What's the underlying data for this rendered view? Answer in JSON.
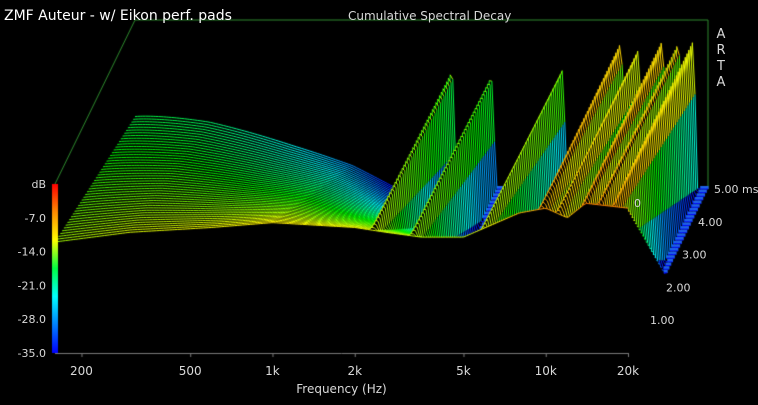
{
  "overlay_title": "ZMF Auteur - w/ Eikon perf. pads",
  "brand_letters": [
    "A",
    "R",
    "T",
    "A"
  ],
  "chart_data": {
    "type": "waterfall",
    "title": "Cumulative Spectral Decay",
    "xlabel": "Frequency (Hz)",
    "x_scale": "log",
    "xlim": [
      160,
      20000
    ],
    "x_ticks": [
      200,
      500,
      1000,
      2000,
      5000,
      10000,
      20000
    ],
    "x_tick_labels": [
      "200",
      "500",
      "1k",
      "2k",
      "5k",
      "10k",
      "20k"
    ],
    "zlabel": "dB",
    "zlim": [
      -35,
      0
    ],
    "z_ticks": [
      -7,
      -14,
      -21,
      -28,
      -35
    ],
    "z_tick_labels": [
      "-7.0",
      "-14.0",
      "-21.0",
      "-28.0",
      "-35.0"
    ],
    "time_unit": "ms",
    "time_range": [
      0,
      5.0
    ],
    "time_ticks": [
      0,
      1,
      2,
      3,
      4,
      5
    ],
    "time_tick_labels": [
      "0",
      "1.00",
      "2.00",
      "3.00",
      "4.00",
      "5.00 ms"
    ],
    "slice_count": 46,
    "initial_response_db": [
      {
        "f": 160,
        "db": -12
      },
      {
        "f": 300,
        "db": -10
      },
      {
        "f": 600,
        "db": -9
      },
      {
        "f": 1000,
        "db": -8
      },
      {
        "f": 2000,
        "db": -9
      },
      {
        "f": 2600,
        "db": -10
      },
      {
        "f": 3500,
        "db": -11
      },
      {
        "f": 5000,
        "db": -11
      },
      {
        "f": 8000,
        "db": -6
      },
      {
        "f": 10000,
        "db": -5
      },
      {
        "f": 12000,
        "db": -7
      },
      {
        "f": 14000,
        "db": -4
      },
      {
        "f": 20000,
        "db": -5
      }
    ],
    "resonances": [
      {
        "f": 2300,
        "db": -14,
        "decay_ms": 2.0
      },
      {
        "f": 3200,
        "db": -18,
        "decay_ms": 2.6
      },
      {
        "f": 5800,
        "db": -16,
        "decay_ms": 2.8
      },
      {
        "f": 9500,
        "db": -8,
        "decay_ms": 3.6
      },
      {
        "f": 11000,
        "db": -10,
        "decay_ms": 3.2
      },
      {
        "f": 13500,
        "db": -12,
        "decay_ms": 3.0
      },
      {
        "f": 15500,
        "db": -14,
        "decay_ms": 2.6
      },
      {
        "f": 17500,
        "db": -18,
        "decay_ms": 2.2
      }
    ],
    "colorbar": [
      "#ff0000",
      "#ff8c00",
      "#ffff00",
      "#00ff44",
      "#00ffff",
      "#0080ff",
      "#0000ff"
    ]
  }
}
